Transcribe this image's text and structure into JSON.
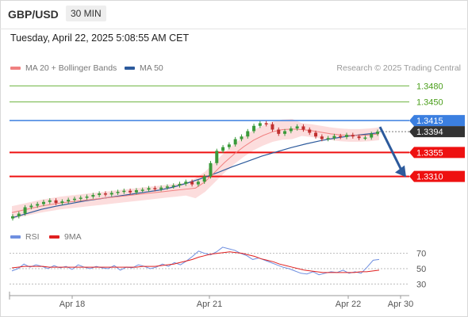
{
  "header": {
    "symbol": "GBP/USD",
    "interval": "30 MIN",
    "timestamp": "Tuesday, April 22, 2025 5:08:55 AM CET"
  },
  "legend": {
    "ma20": "MA 20 + Bollinger Bands",
    "ma50": "MA 50",
    "copyright": "Research © 2025 Trading Central",
    "rsi": "RSI",
    "ma9": "9MA"
  },
  "colors": {
    "ma20": "#f08080",
    "ma50": "#2c5a9c",
    "band_fill": "#fbd4d4",
    "up_candle": "#3a9a3a",
    "down_candle": "#c03030",
    "resistance": "#6db33f",
    "pivot": "#3b7fe0",
    "support": "#ee1111",
    "current": "#333333",
    "rsi": "#6f8fe0",
    "rsi_ma": "#e02020",
    "arrow": "#2c5a9c"
  },
  "chart_data": [
    {
      "type": "line",
      "title": "GBP/USD 30 MIN",
      "x_ticks": [
        "Apr 18",
        "Apr 21",
        "Apr 22",
        "Apr 30"
      ],
      "price_lines": [
        {
          "value": 1.348,
          "label": "1.3480",
          "kind": "resistance"
        },
        {
          "value": 1.345,
          "label": "1.3450",
          "kind": "resistance"
        },
        {
          "value": 1.3415,
          "label": "1.3415",
          "kind": "pivot"
        },
        {
          "value": 1.3394,
          "label": "1.3394",
          "kind": "current"
        },
        {
          "value": 1.3355,
          "label": "1.3355",
          "kind": "support"
        },
        {
          "value": 1.331,
          "label": "1.3310",
          "kind": "support"
        }
      ],
      "price_range": [
        1.322,
        1.35
      ],
      "close_series": [
        1.3235,
        1.324,
        1.3252,
        1.3255,
        1.3258,
        1.3262,
        1.3265,
        1.326,
        1.3263,
        1.3266,
        1.3268,
        1.327,
        1.3272,
        1.3275,
        1.3278,
        1.3276,
        1.3279,
        1.3281,
        1.3283,
        1.328,
        1.3284,
        1.3285,
        1.3288,
        1.3286,
        1.3289,
        1.3291,
        1.3293,
        1.3296,
        1.33,
        1.3295,
        1.33,
        1.331,
        1.3335,
        1.3358,
        1.3365,
        1.337,
        1.338,
        1.3385,
        1.3395,
        1.3405,
        1.341,
        1.3408,
        1.3398,
        1.339,
        1.3395,
        1.34,
        1.3404,
        1.3398,
        1.3392,
        1.3385,
        1.338,
        1.3382,
        1.3386,
        1.3384,
        1.3388,
        1.3385,
        1.3382,
        1.3383,
        1.339,
        1.3394
      ],
      "ma20_series": [
        1.3242,
        1.3246,
        1.325,
        1.3254,
        1.3257,
        1.326,
        1.3262,
        1.3264,
        1.3266,
        1.3268,
        1.327,
        1.3272,
        1.3274,
        1.3276,
        1.3278,
        1.328,
        1.3282,
        1.3284,
        1.3286,
        1.3288,
        1.33,
        1.3318,
        1.3336,
        1.3352,
        1.3366,
        1.3378,
        1.3387,
        1.3394,
        1.3398,
        1.3399,
        1.3398,
        1.3396,
        1.3393,
        1.339,
        1.3388,
        1.3387,
        1.3387,
        1.3388,
        1.339
      ],
      "ma50_series": [
        1.3232,
        1.324,
        1.3248,
        1.3254,
        1.3259,
        1.3264,
        1.3268,
        1.3272,
        1.3276,
        1.328,
        1.3284,
        1.329,
        1.3298,
        1.3307,
        1.3317,
        1.3328,
        1.3338,
        1.3348,
        1.3356,
        1.3364,
        1.3371,
        1.3377,
        1.3382,
        1.3386,
        1.3389,
        1.3392
      ],
      "forecast": {
        "from": 1.34,
        "to": 1.331
      }
    },
    {
      "type": "line",
      "title": "RSI",
      "y_ticks": [
        70,
        50,
        30
      ],
      "ylim": [
        20,
        80
      ],
      "series": [
        {
          "name": "RSI",
          "values": [
            47,
            50,
            56,
            52,
            55,
            53,
            50,
            54,
            51,
            53,
            49,
            55,
            52,
            50,
            53,
            51,
            50,
            54,
            48,
            52,
            51,
            55,
            53,
            50,
            52,
            56,
            53,
            58,
            55,
            60,
            66,
            73,
            70,
            68,
            72,
            78,
            76,
            74,
            70,
            67,
            62,
            64,
            61,
            58,
            55,
            52,
            50,
            47,
            44,
            43,
            46,
            42,
            44,
            46,
            45,
            48,
            44,
            46,
            44,
            52,
            61,
            62
          ]
        },
        {
          "name": "9MA",
          "values": [
            51,
            52,
            53,
            53,
            53,
            53,
            52,
            52,
            52,
            52,
            52,
            52,
            52,
            52,
            52,
            52,
            52,
            52,
            52,
            52,
            52,
            53,
            53,
            53,
            54,
            55,
            56,
            58,
            60,
            62,
            65,
            67,
            69,
            70,
            71,
            72,
            71,
            70,
            68,
            66,
            63,
            61,
            59,
            56,
            54,
            52,
            50,
            48,
            47,
            46,
            45,
            45,
            45,
            45,
            45,
            45,
            46,
            46,
            47,
            48
          ]
        }
      ]
    }
  ]
}
